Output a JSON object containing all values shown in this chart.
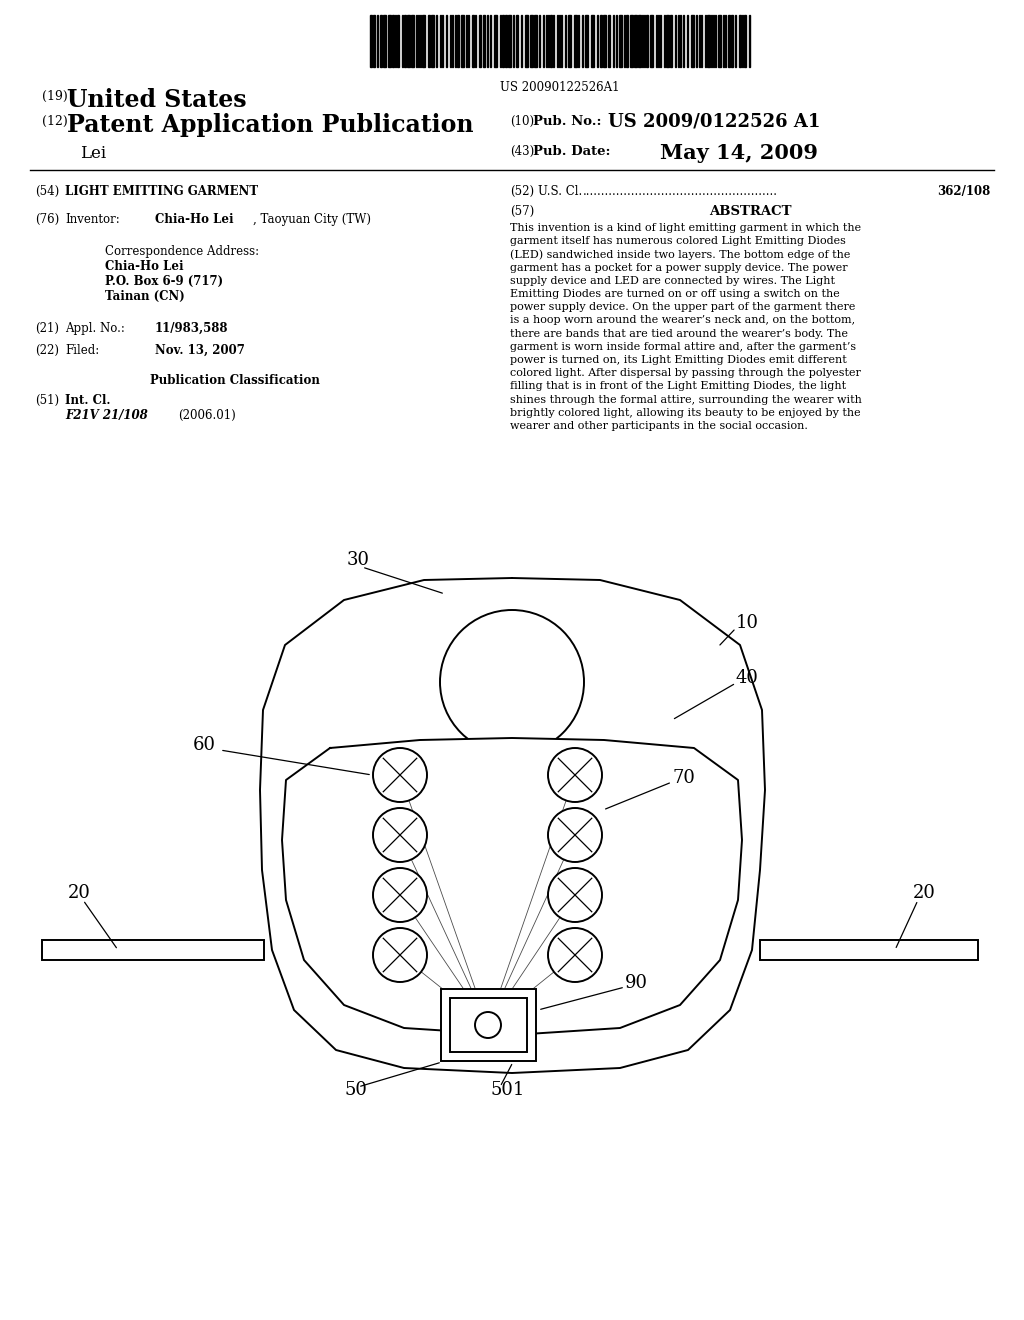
{
  "background_color": "#ffffff",
  "barcode_text": "US 20090122526A1",
  "header_line1_num": "(19)",
  "header_line1_text": "United States",
  "header_line2_num": "(12)",
  "header_line2_text": "Patent Application Publication",
  "header_line3_text": "Lei",
  "pub_no_num": "(10)",
  "pub_no_label": "Pub. No.:",
  "pub_no_value": "US 2009/0122526 A1",
  "pub_date_num": "(43)",
  "pub_date_label": "Pub. Date:",
  "pub_date_value": "May 14, 2009",
  "section54_num": "(54)",
  "section54_label": "LIGHT EMITTING GARMENT",
  "section52_num": "(52)",
  "section52_label": "U.S. Cl.",
  "section52_dots": "....................................................",
  "section52_value": "362/108",
  "section57_num": "(57)",
  "section57_label": "ABSTRACT",
  "abstract_lines": [
    "This invention is a kind of light emitting garment in which the",
    "garment itself has numerous colored Light Emitting Diodes",
    "(LED) sandwiched inside two layers. The bottom edge of the",
    "garment has a pocket for a power supply device. The power",
    "supply device and LED are connected by wires. The Light",
    "Emitting Diodes are turned on or off using a switch on the",
    "power supply device. On the upper part of the garment there",
    "is a hoop worn around the wearer’s neck and, on the bottom,",
    "there are bands that are tied around the wearer’s body. The",
    "garment is worn inside formal attire and, after the garment’s",
    "power is turned on, its Light Emitting Diodes emit different",
    "colored light. After dispersal by passing through the polyester",
    "filling that is in front of the Light Emitting Diodes, the light",
    "shines through the formal attire, surrounding the wearer with",
    "brightly colored light, allowing its beauty to be enjoyed by the",
    "wearer and other participants in the social occasion."
  ],
  "section76_num": "(76)",
  "section76_label": "Inventor:",
  "section76_name": "Chia-Ho Lei",
  "section76_location": ", Taoyuan City (TW)",
  "corr_label": "Correspondence Address:",
  "corr_name": "Chia-Ho Lei",
  "corr_addr1": "P.O. Box 6-9 (717)",
  "corr_addr2": "Tainan (CN)",
  "section21_num": "(21)",
  "section21_label": "Appl. No.:",
  "section21_value": "11/983,588",
  "section22_num": "(22)",
  "section22_label": "Filed:",
  "section22_value": "Nov. 13, 2007",
  "pub_class_label": "Publication Classification",
  "section51_num": "(51)",
  "section51_label": "Int. Cl.",
  "section51_class": "F21V 21/108",
  "section51_year": "(2006.01)"
}
